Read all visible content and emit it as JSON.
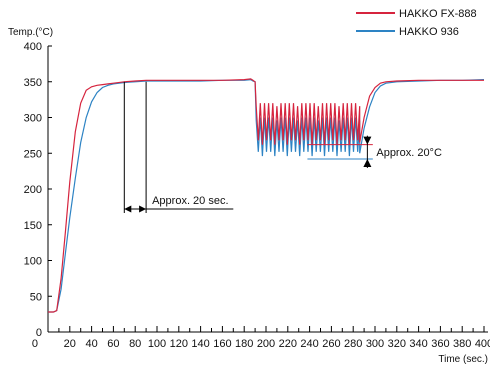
{
  "chart_data": {
    "type": "line",
    "title": "",
    "xlabel": "Time (sec.)",
    "ylabel": "Temp.(°C)",
    "xlim": [
      0,
      400
    ],
    "ylim": [
      0,
      400
    ],
    "xticks": [
      20,
      40,
      60,
      80,
      100,
      120,
      140,
      160,
      180,
      200,
      220,
      240,
      260,
      280,
      300,
      320,
      340,
      360,
      380,
      400
    ],
    "yticks": [
      0,
      50,
      100,
      150,
      200,
      250,
      300,
      350,
      400
    ],
    "grid": false,
    "legend": "top-right",
    "colors": {
      "fx888": "#d6243e",
      "fx936": "#2d83c4",
      "annotation": "#000000",
      "axis": "#000000"
    },
    "series": [
      {
        "name": "HAKKO FX-888",
        "x": [
          0,
          5,
          8,
          12,
          16,
          20,
          25,
          30,
          35,
          40,
          45,
          50,
          55,
          60,
          70,
          80,
          90,
          100,
          120,
          140,
          160,
          180,
          186,
          188,
          190
        ],
        "y": [
          28,
          28,
          30,
          75,
          140,
          210,
          280,
          320,
          338,
          343,
          345,
          346,
          347,
          348,
          350,
          351,
          352,
          352,
          352,
          352,
          352,
          353,
          354,
          352,
          350
        ]
      },
      {
        "name": "HAKKO 936",
        "x": [
          0,
          5,
          8,
          12,
          16,
          20,
          25,
          30,
          35,
          40,
          45,
          50,
          55,
          60,
          70,
          80,
          90,
          100,
          120,
          140,
          160,
          180,
          186,
          188,
          190
        ],
        "y": [
          28,
          28,
          30,
          60,
          110,
          160,
          215,
          265,
          300,
          322,
          335,
          342,
          345,
          347,
          349,
          350,
          351,
          351,
          351,
          351,
          352,
          352,
          353,
          351,
          350
        ]
      }
    ],
    "fluctuation": {
      "x_range": [
        190,
        286
      ],
      "fx888_band": [
        262,
        320
      ],
      "fx936_band": [
        242,
        300
      ]
    },
    "recovery": {
      "x": [
        286,
        290,
        295,
        300,
        305,
        310,
        320,
        340,
        360,
        380,
        400
      ],
      "fx888": [
        265,
        300,
        330,
        342,
        348,
        350,
        351,
        352,
        352,
        352,
        352
      ],
      "fx936": [
        250,
        285,
        315,
        335,
        344,
        348,
        350,
        351,
        352,
        352,
        353
      ]
    },
    "annotations": [
      {
        "text": "Approx. 20 sec.",
        "x_from": 70,
        "x_to": 90
      },
      {
        "text": "Approx. 20°C",
        "y_from": 262,
        "y_to": 242
      }
    ]
  }
}
